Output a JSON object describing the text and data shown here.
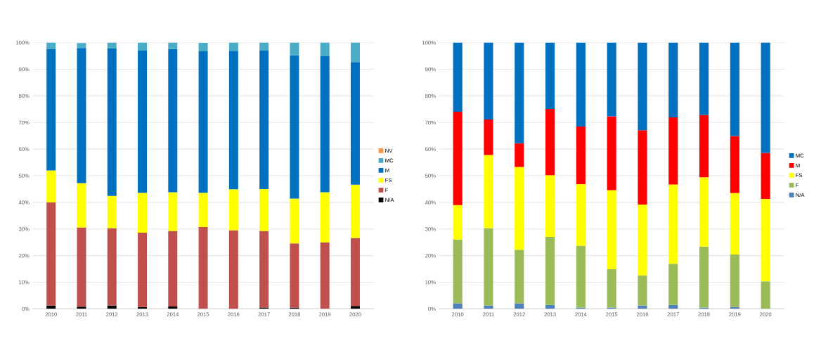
{
  "chart_data": [
    {
      "type": "bar",
      "stacked": true,
      "categories": [
        "2010",
        "2011",
        "2012",
        "2013",
        "2014",
        "2015",
        "2016",
        "2017",
        "2018",
        "2019",
        "2020"
      ],
      "series": [
        {
          "name": "N/A",
          "color": "#000000",
          "values": [
            1.2,
            0.8,
            1.2,
            0.7,
            0.9,
            null,
            0,
            0.5,
            0.5,
            0,
            1.1
          ]
        },
        {
          "name": "F",
          "color": "#c0504d",
          "values": [
            38.8,
            29.8,
            29.1,
            27.9,
            28.4,
            30.7,
            29.5,
            28.8,
            24.1,
            25.0,
            25.5
          ]
        },
        {
          "name": "FS",
          "color": "#ffff00",
          "values": [
            12,
            16.6,
            12.1,
            15,
            14.5,
            12.9,
            15.4,
            15.7,
            16.8,
            18.8,
            20
          ]
        },
        {
          "name": "M",
          "color": "#0070c0",
          "values": [
            45.5,
            50.8,
            55.4,
            53.4,
            53.8,
            53.1,
            52,
            52,
            53.9,
            51.1,
            46.1
          ]
        },
        {
          "name": "MC",
          "color": "#4bacc6",
          "values": [
            2.5,
            1.8,
            2.2,
            3,
            2.4,
            3.2,
            3.1,
            3,
            4.7,
            5.1,
            7.3
          ]
        },
        {
          "name": "NV",
          "color": "#f79646",
          "values": [
            0,
            null,
            0,
            0,
            0,
            0,
            0,
            0,
            0,
            0,
            0
          ]
        }
      ],
      "ylim": [
        0,
        100
      ],
      "yticks": [
        {
          "value": 0,
          "label": "0%"
        },
        {
          "value": 10,
          "label": "10%"
        },
        {
          "value": 20,
          "label": "20%"
        },
        {
          "value": 30,
          "label": "30%"
        },
        {
          "value": 40,
          "label": "40%"
        },
        {
          "value": 50,
          "label": "50%"
        },
        {
          "value": 60,
          "label": "60%"
        },
        {
          "value": 70,
          "label": "70%"
        },
        {
          "value": 80,
          "label": "80%"
        },
        {
          "value": 90,
          "label": "90%"
        },
        {
          "value": 100,
          "label": "100%"
        }
      ],
      "grid": "y",
      "legend": "right"
    },
    {
      "type": "bar",
      "stacked": true,
      "categories": [
        "2010",
        "2011",
        "2012",
        "2013",
        "2014",
        "2015",
        "2016",
        "2017",
        "2018",
        "2019",
        "2020"
      ],
      "series": [
        {
          "name": "N/A",
          "color": "#4f81bd",
          "values": [
            2.1,
            1.2,
            2.1,
            1.5,
            0.5,
            0.5,
            1.2,
            1.5,
            0.5,
            0.7,
            0
          ]
        },
        {
          "name": "F",
          "color": "#9bbb59",
          "values": [
            23.9,
            29.1,
            20.1,
            25.5,
            23.2,
            14.4,
            11.4,
            15.4,
            22.9,
            19.7,
            10.3
          ]
        },
        {
          "name": "FS",
          "color": "#ffff00",
          "values": [
            13,
            27.5,
            31.1,
            23.2,
            23.1,
            29.7,
            26.6,
            29.8,
            26,
            23.1,
            31
          ]
        },
        {
          "name": "M",
          "color": "#ff0000",
          "values": [
            35,
            13.3,
            8.9,
            24.9,
            21.7,
            27.7,
            27.9,
            25.2,
            23.4,
            21.4,
            17.3
          ]
        },
        {
          "name": "MC",
          "color": "#0070c0",
          "values": [
            26,
            28.9,
            37.8,
            24.9,
            31.5,
            27.7,
            32.9,
            28.1,
            27.2,
            35.1,
            41.4
          ]
        }
      ],
      "ylim": [
        0,
        100
      ],
      "yticks": [
        {
          "value": 0,
          "label": "0%"
        },
        {
          "value": 10,
          "label": "10%"
        },
        {
          "value": 20,
          "label": "20%"
        },
        {
          "value": 30,
          "label": "30%"
        },
        {
          "value": 40,
          "label": "40%"
        },
        {
          "value": 50,
          "label": "50%"
        },
        {
          "value": 60,
          "label": "60%"
        },
        {
          "value": 70,
          "label": "70%"
        },
        {
          "value": 80,
          "label": "80%"
        },
        {
          "value": 90,
          "label": "90%"
        },
        {
          "value": 100,
          "label": "100%"
        }
      ],
      "grid": "y",
      "legend": "right"
    }
  ]
}
